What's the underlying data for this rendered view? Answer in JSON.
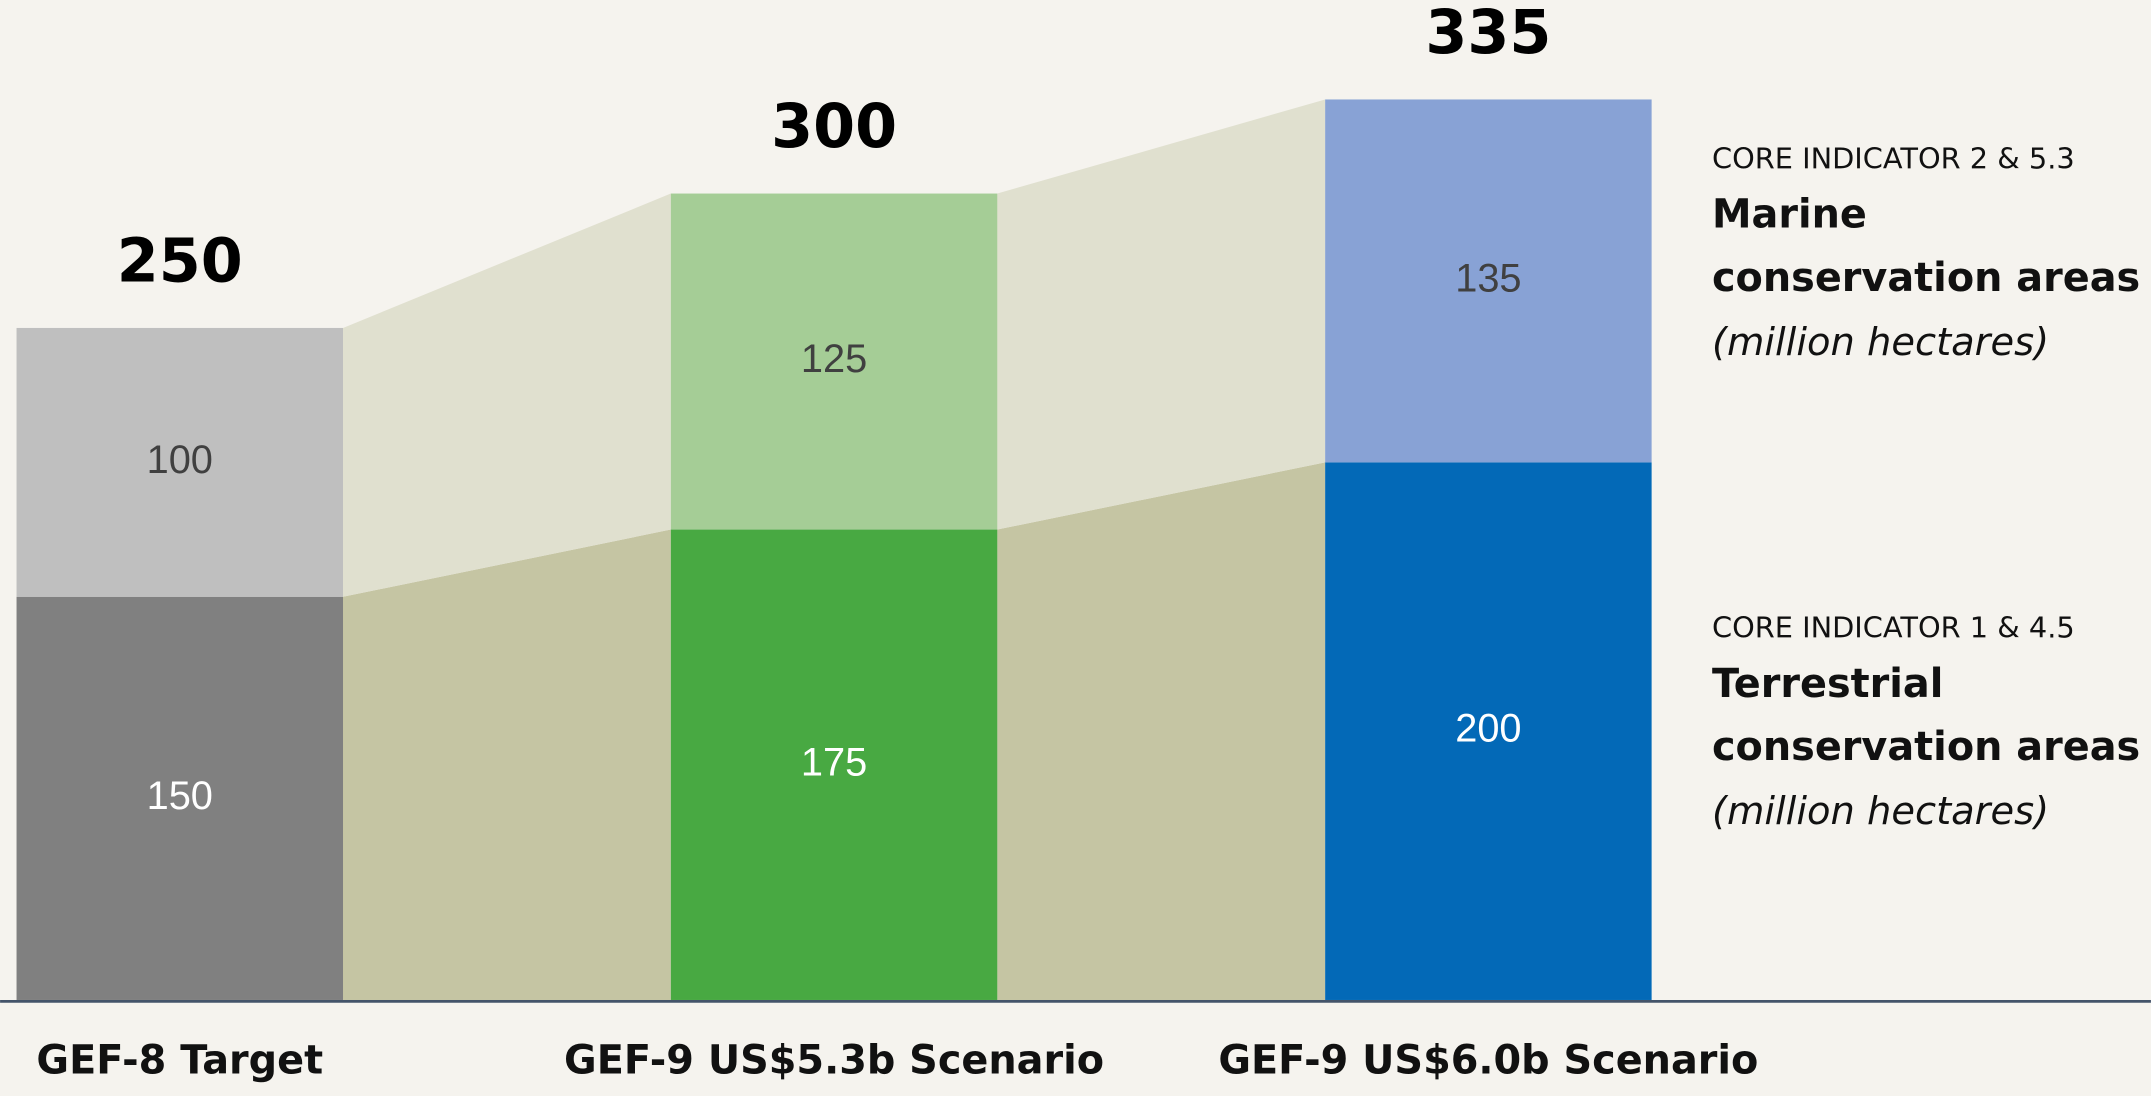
{
  "chart_data": {
    "type": "stacked-bar",
    "categories": [
      "GEF-8 Target",
      "GEF-9 US$5.3b Scenario",
      "GEF-9 US$6.0b Scenario"
    ],
    "series": [
      {
        "name": "Terrestrial conservation areas",
        "indicator": "CORE INDICATOR 1 & 4.5",
        "unit": "(million hectares)",
        "colors": [
          "#808080",
          "#48a942",
          "#0369b7"
        ],
        "flow_color": "#c5c5a3",
        "label_color": "#ffffff",
        "values": [
          150,
          175,
          200
        ]
      },
      {
        "name": "Marine conservation areas",
        "indicator": "CORE INDICATOR 2 & 5.3",
        "unit": "(million hectares)",
        "colors": [
          "#bfbfbf",
          "#a5cd96",
          "#88a2d5"
        ],
        "flow_color": "#e0e0cf",
        "label_color": "#404040",
        "values": [
          100,
          125,
          135
        ]
      }
    ],
    "totals": [
      250,
      300,
      335
    ],
    "ylim": [
      0,
      372
    ]
  }
}
